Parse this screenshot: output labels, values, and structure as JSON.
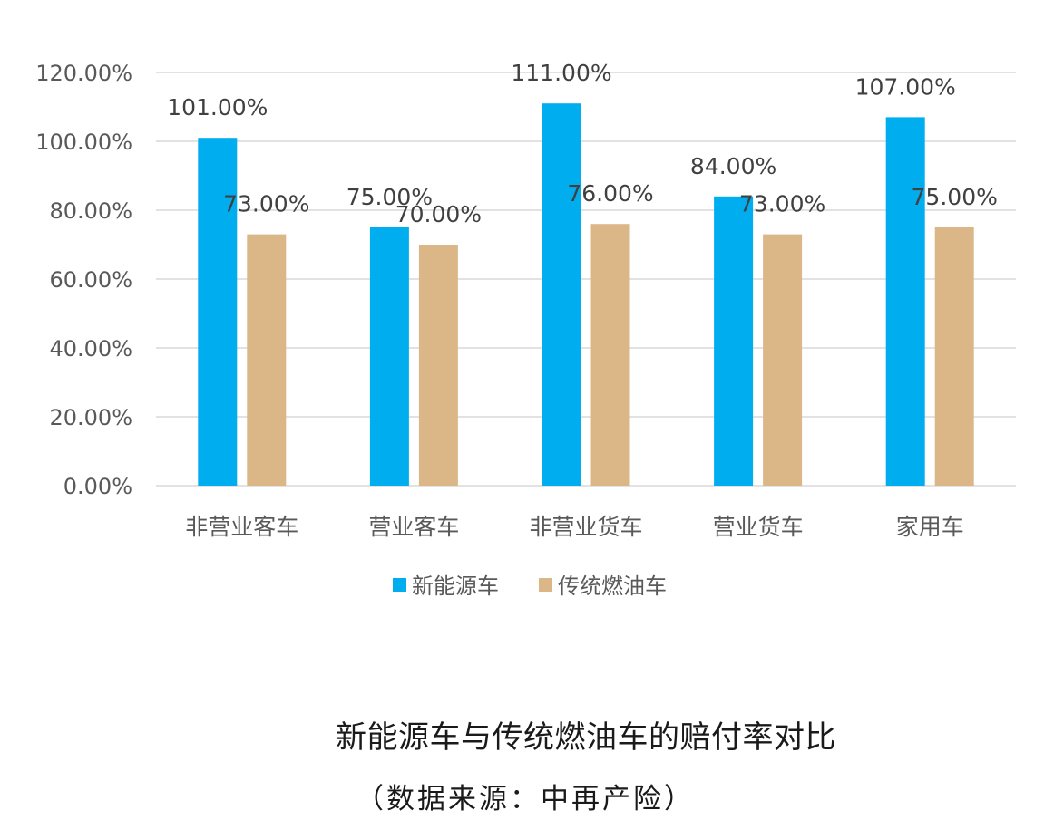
{
  "colors": {
    "new_energy": "#00aeef",
    "traditional": "#dbb788",
    "grid": "#d9d9d9",
    "axis_text": "#595959",
    "label_text": "#404040"
  },
  "chart_data": {
    "type": "bar",
    "categories": [
      "非营业客车",
      "营业客车",
      "非营业货车",
      "营业货车",
      "家用车"
    ],
    "series": [
      {
        "name": "新能源车",
        "values": [
          101,
          75,
          111,
          84,
          107
        ],
        "labels": [
          "101.00%",
          "75.00%",
          "111.00%",
          "84.00%",
          "107.00%"
        ]
      },
      {
        "name": "传统燃油车",
        "values": [
          73,
          70,
          76,
          73,
          75
        ],
        "labels": [
          "73.00%",
          "70.00%",
          "76.00%",
          "73.00%",
          "75.00%"
        ]
      }
    ],
    "ylim": [
      0,
      120
    ],
    "yticks": [
      0,
      20,
      40,
      60,
      80,
      100,
      120
    ],
    "ytick_labels": [
      "0.00%",
      "20.00%",
      "40.00%",
      "60.00%",
      "80.00%",
      "100.00%",
      "120.00%"
    ],
    "grid": true,
    "legend": "bottom"
  },
  "caption": {
    "title": "新能源车与传统燃油车的赔付率对比",
    "source": "（数据来源：中再产险）"
  }
}
